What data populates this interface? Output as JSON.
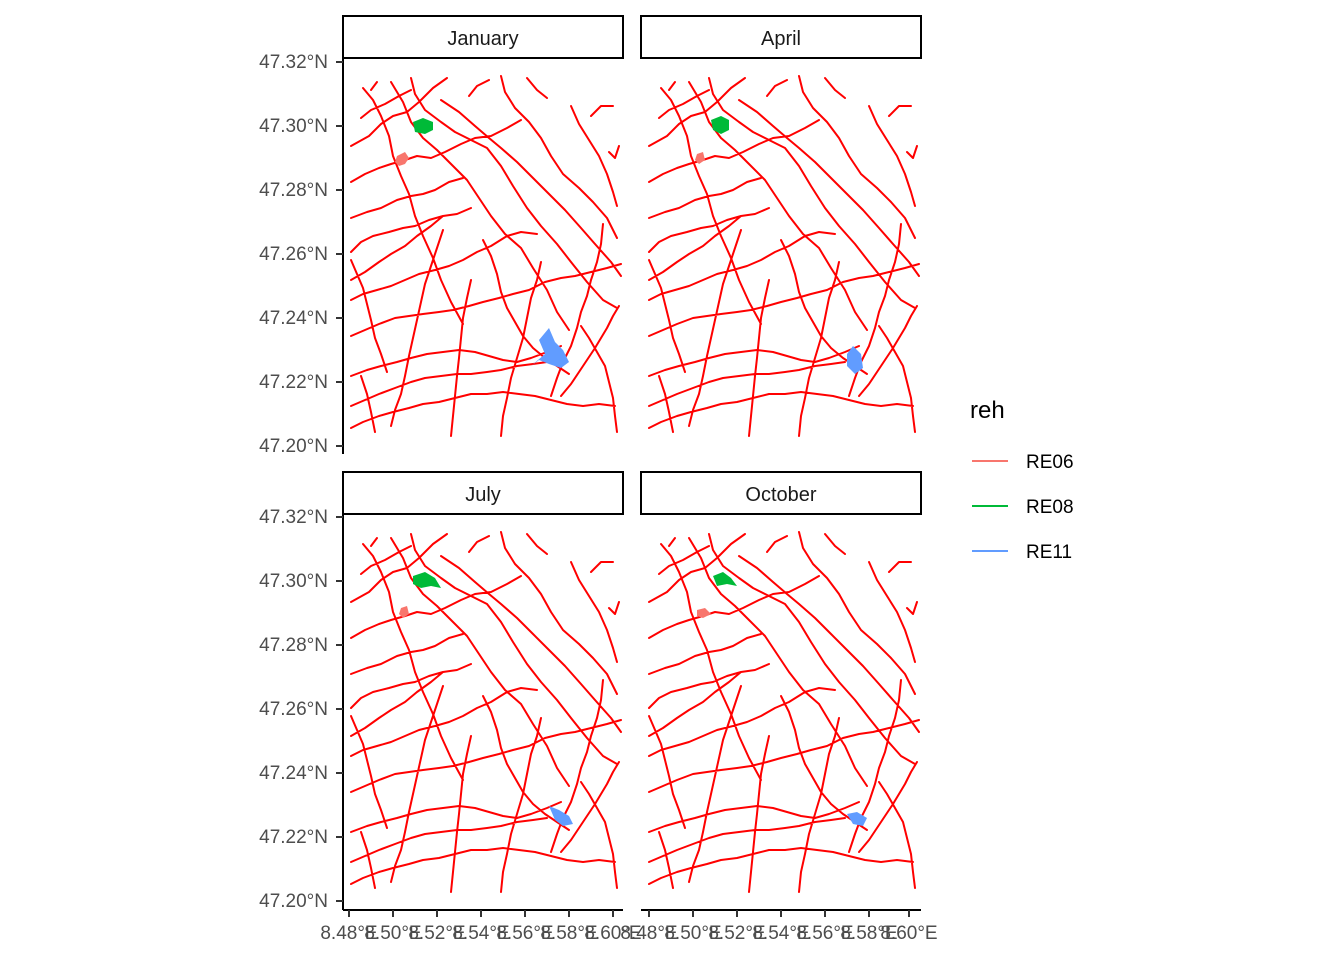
{
  "figure": {
    "panels": [
      {
        "label": "January"
      },
      {
        "label": "April"
      },
      {
        "label": "July"
      },
      {
        "label": "October"
      }
    ],
    "y_ticks": [
      "47.20°N",
      "47.22°N",
      "47.24°N",
      "47.26°N",
      "47.28°N",
      "47.30°N",
      "47.32°N"
    ],
    "x_ticks": [
      "8.48°E",
      "8.50°E",
      "8.52°E",
      "8.54°E",
      "8.56°E",
      "8.58°E",
      "8.60°E"
    ],
    "road_color": "#ff0000",
    "legend": {
      "title": "reh",
      "items": [
        {
          "label": "RE06",
          "color": "#F8766D"
        },
        {
          "label": "RE08",
          "color": "#00BA38"
        },
        {
          "label": "RE11",
          "color": "#619CFF"
        }
      ]
    }
  }
}
